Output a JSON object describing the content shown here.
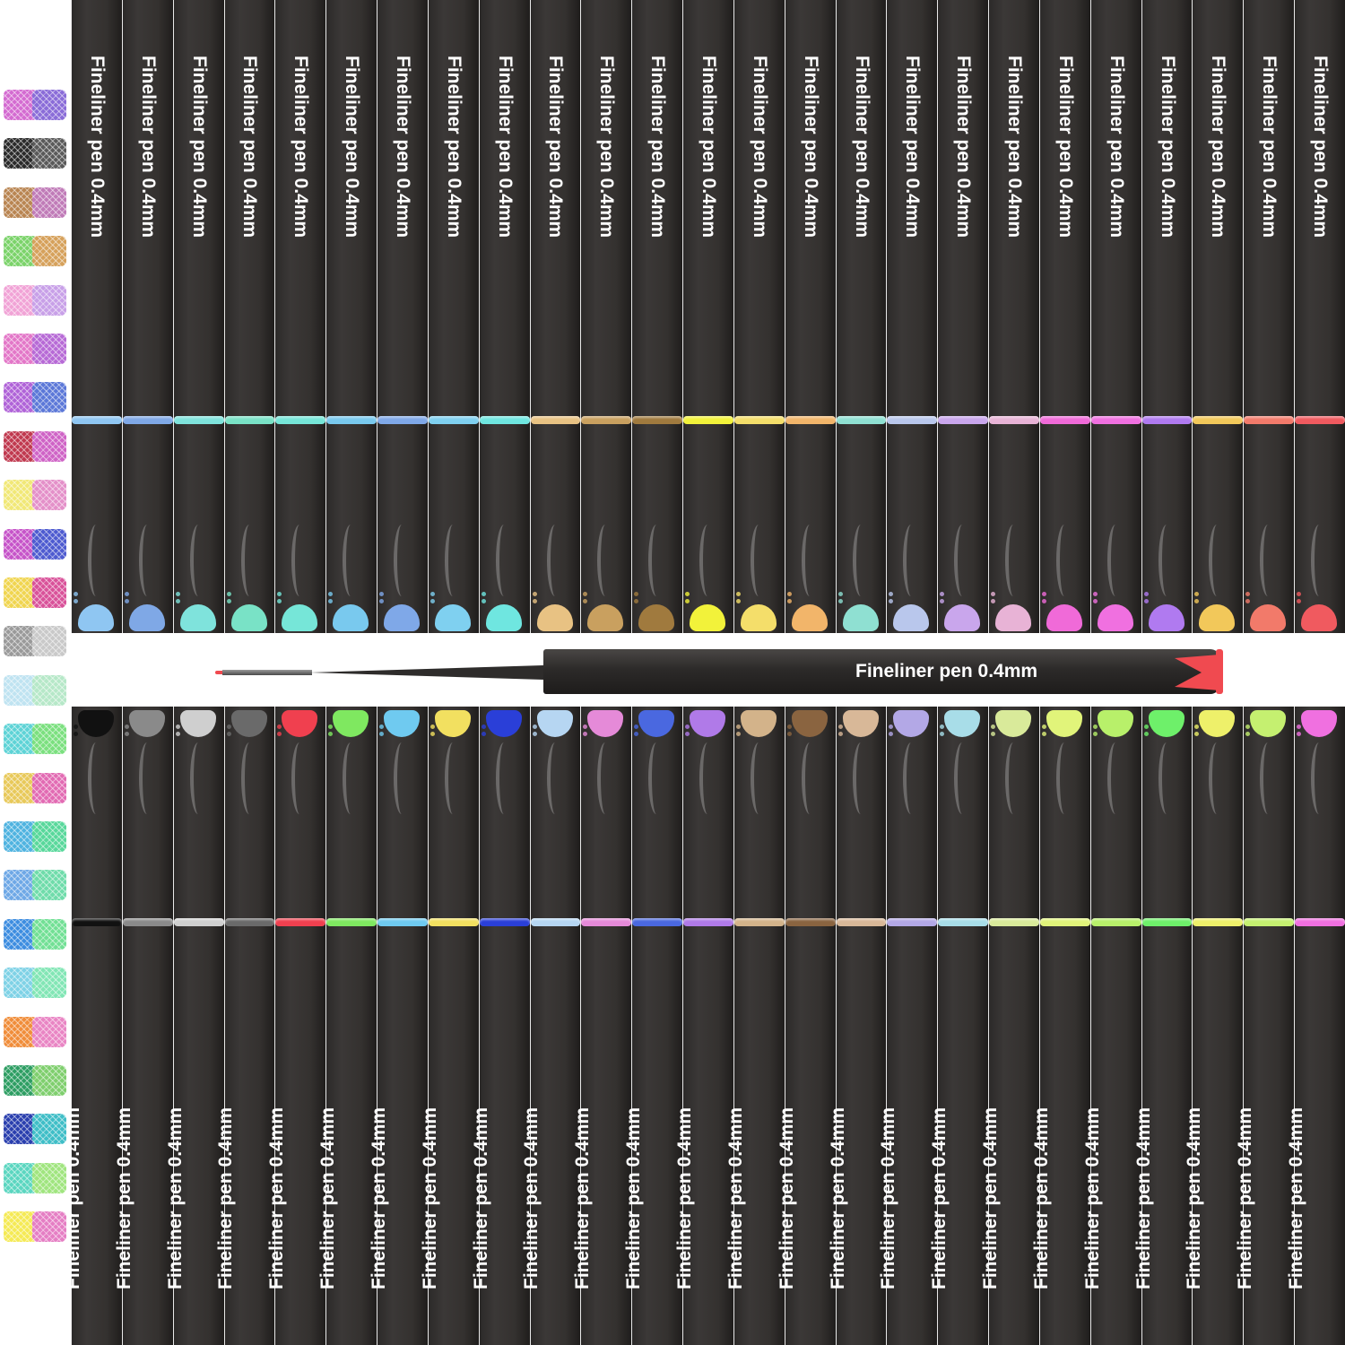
{
  "pen_label": "Fineliner pen 0.4mm",
  "featured_pen": {
    "label": "Fineliner pen 0.4mm",
    "color": "#f04a50"
  },
  "swatches": [
    {
      "a": "#d46bd1",
      "b": "#8a6cd8"
    },
    {
      "a": "#2b2b2b",
      "b": "#5a5a5a"
    },
    {
      "a": "#b98552",
      "b": "#c07bb8"
    },
    {
      "a": "#7bd36a",
      "b": "#d6a15b"
    },
    {
      "a": "#f1a3d6",
      "b": "#c8a0e8"
    },
    {
      "a": "#e377c8",
      "b": "#b76ad6"
    },
    {
      "a": "#b063d8",
      "b": "#5c78d8"
    },
    {
      "a": "#c0394f",
      "b": "#cf63c6"
    },
    {
      "a": "#f1e877",
      "b": "#e490c9"
    },
    {
      "a": "#c654c9",
      "b": "#4e5bd0"
    },
    {
      "a": "#f0d550",
      "b": "#d9529a"
    },
    {
      "a": "#9a9a9a",
      "b": "#c9c9c9"
    },
    {
      "a": "#bfe3f1",
      "b": "#b6e8c8"
    },
    {
      "a": "#5ed3d6",
      "b": "#7be07f"
    },
    {
      "a": "#e8c95a",
      "b": "#e26bb3"
    },
    {
      "a": "#4fb3e0",
      "b": "#58d89b"
    },
    {
      "a": "#6ea8e6",
      "b": "#6fdcaa"
    },
    {
      "a": "#3d8de0",
      "b": "#72e095"
    },
    {
      "a": "#7fd2e6",
      "b": "#82e6b5"
    },
    {
      "a": "#f08d3a",
      "b": "#e985c4"
    },
    {
      "a": "#2e9e63",
      "b": "#7fcf6e"
    },
    {
      "a": "#2a3fae",
      "b": "#3fbec7"
    },
    {
      "a": "#5bd6c0",
      "b": "#a0e57f"
    },
    {
      "a": "#f5ea55",
      "b": "#e57ec4"
    }
  ],
  "top_pens": [
    "#8fc6f2",
    "#7fa8e6",
    "#7fe3dc",
    "#79e2c6",
    "#76e6d8",
    "#79c9ee",
    "#7fa8e8",
    "#7fd0f0",
    "#6fe6e0",
    "#e8c283",
    "#c9a05f",
    "#a07a3e",
    "#f2f23a",
    "#f4de6a",
    "#f2b56a",
    "#8fe0d2",
    "#b9c7ec",
    "#c9a6ec",
    "#e8b3d6",
    "#f06ad8",
    "#f070e0",
    "#b07af0",
    "#f2c85a",
    "#f27a6a",
    "#f05a5f"
  ],
  "bottom_pens": [
    "#111111",
    "#8a8a8a",
    "#cfcfcf",
    "#6a6a6a",
    "#f0404f",
    "#7fe860",
    "#6fcaf0",
    "#f2e060",
    "#2a3fd8",
    "#b6d6f2",
    "#e58ad8",
    "#4a68e0",
    "#b07ae8",
    "#d3b38a",
    "#8a6440",
    "#d8b898",
    "#b3a8e6",
    "#a8dde8",
    "#d9ea9a",
    "#e1f47a",
    "#b8f06a",
    "#6ef06a",
    "#eef06a",
    "#c5f070",
    "#f070e0"
  ]
}
